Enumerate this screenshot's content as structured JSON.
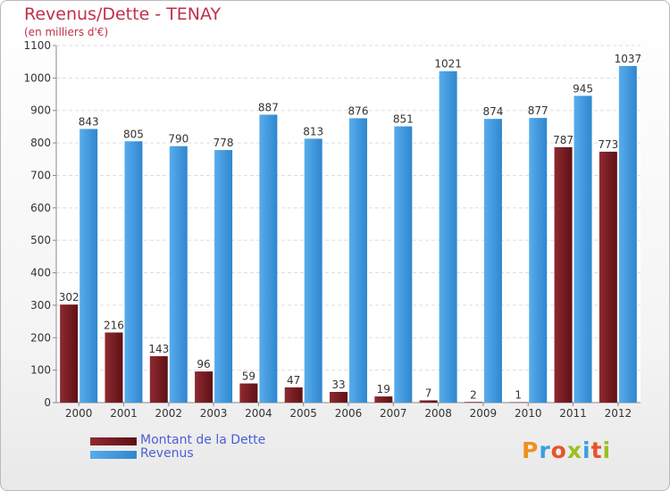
{
  "header": {
    "title": "Revenus/Dette - TENAY",
    "subtitle": "(en milliers d'€)"
  },
  "colors": {
    "dette": "#7a1d22",
    "revenus": "#3e97dc",
    "title": "#c0304a",
    "legend_text": "#4a5fd6"
  },
  "chart_data": {
    "type": "bar",
    "title": "Revenus/Dette - TENAY",
    "ylabel": "(en milliers d'€)",
    "xlabel": "",
    "ylim": [
      0,
      1100
    ],
    "yticks": [
      0,
      100,
      200,
      300,
      400,
      500,
      600,
      700,
      800,
      900,
      1000,
      1100
    ],
    "grid": true,
    "categories": [
      "2000",
      "2001",
      "2002",
      "2003",
      "2004",
      "2005",
      "2006",
      "2007",
      "2008",
      "2009",
      "2010",
      "2011",
      "2012"
    ],
    "series": [
      {
        "name": "Montant de la Dette",
        "values": [
          302,
          216,
          143,
          96,
          59,
          47,
          33,
          19,
          7,
          2,
          1,
          787,
          773
        ]
      },
      {
        "name": "Revenus",
        "values": [
          843,
          805,
          790,
          778,
          887,
          813,
          876,
          851,
          1021,
          874,
          877,
          945,
          1037
        ]
      }
    ],
    "legend_position": "bottom-left"
  },
  "legend": {
    "items": [
      {
        "label": "Montant de la Dette"
      },
      {
        "label": "Revenus"
      }
    ]
  },
  "logo": {
    "text": "Proxiti",
    "letter_colors": [
      "#f0901e",
      "#3aa0dc",
      "#e7542b",
      "#9ac11e",
      "#3aa0dc",
      "#e7542b",
      "#9ac11e"
    ]
  }
}
